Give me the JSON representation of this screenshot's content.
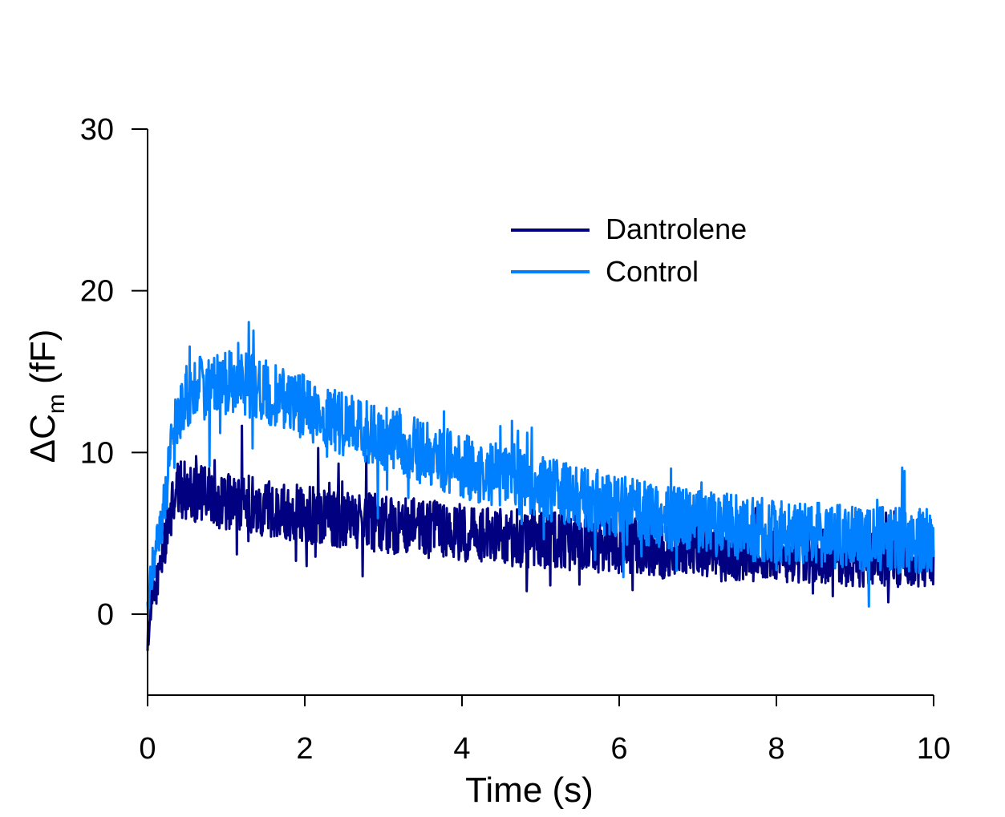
{
  "chart_data": {
    "type": "line",
    "xlabel": "Time (s)",
    "ylabel": {
      "prefix": "ΔC",
      "subscript": "m",
      "suffix": " (fF)"
    },
    "xlim": [
      0,
      10
    ],
    "ylim": [
      -5,
      30
    ],
    "x_ticks": [
      0,
      2,
      4,
      6,
      8,
      10
    ],
    "y_ticks": [
      0,
      10,
      20,
      30
    ],
    "grid": false,
    "legend_position": "upper-right",
    "series": [
      {
        "name": "Dantrolene",
        "color": "#000080",
        "x": [
          0,
          0.05,
          0.1,
          0.2,
          0.3,
          0.4,
          0.6,
          0.8,
          1.0,
          1.5,
          2.0,
          2.5,
          3.0,
          3.5,
          4.0,
          4.5,
          5.0,
          5.5,
          6.0,
          6.5,
          7.0,
          7.5,
          8.0,
          8.5,
          9.0,
          9.5,
          10.0
        ],
        "y": [
          -1.5,
          0.5,
          1.5,
          4.0,
          6.5,
          7.8,
          7.5,
          7.3,
          7.0,
          6.6,
          6.2,
          5.9,
          5.6,
          5.3,
          5.0,
          4.8,
          4.6,
          4.4,
          4.2,
          4.0,
          3.9,
          3.8,
          3.7,
          3.6,
          3.5,
          3.5,
          3.4
        ],
        "noise": 1.8
      },
      {
        "name": "Control",
        "color": "#0080FF",
        "x": [
          0,
          0.05,
          0.1,
          0.2,
          0.3,
          0.4,
          0.5,
          0.7,
          1.0,
          1.2,
          1.5,
          2.0,
          2.5,
          3.0,
          3.5,
          4.0,
          4.5,
          5.0,
          5.5,
          6.0,
          6.5,
          7.0,
          7.5,
          8.0,
          8.5,
          9.0,
          9.5,
          10.0
        ],
        "y": [
          0.5,
          2.5,
          3.5,
          6.5,
          10.0,
          12.5,
          13.5,
          14.0,
          14.3,
          14.3,
          13.8,
          12.8,
          11.8,
          10.9,
          10.0,
          9.2,
          8.5,
          7.8,
          7.2,
          6.6,
          6.1,
          5.7,
          5.4,
          5.1,
          4.9,
          4.7,
          4.6,
          4.5
        ],
        "noise": 2.0
      }
    ]
  }
}
